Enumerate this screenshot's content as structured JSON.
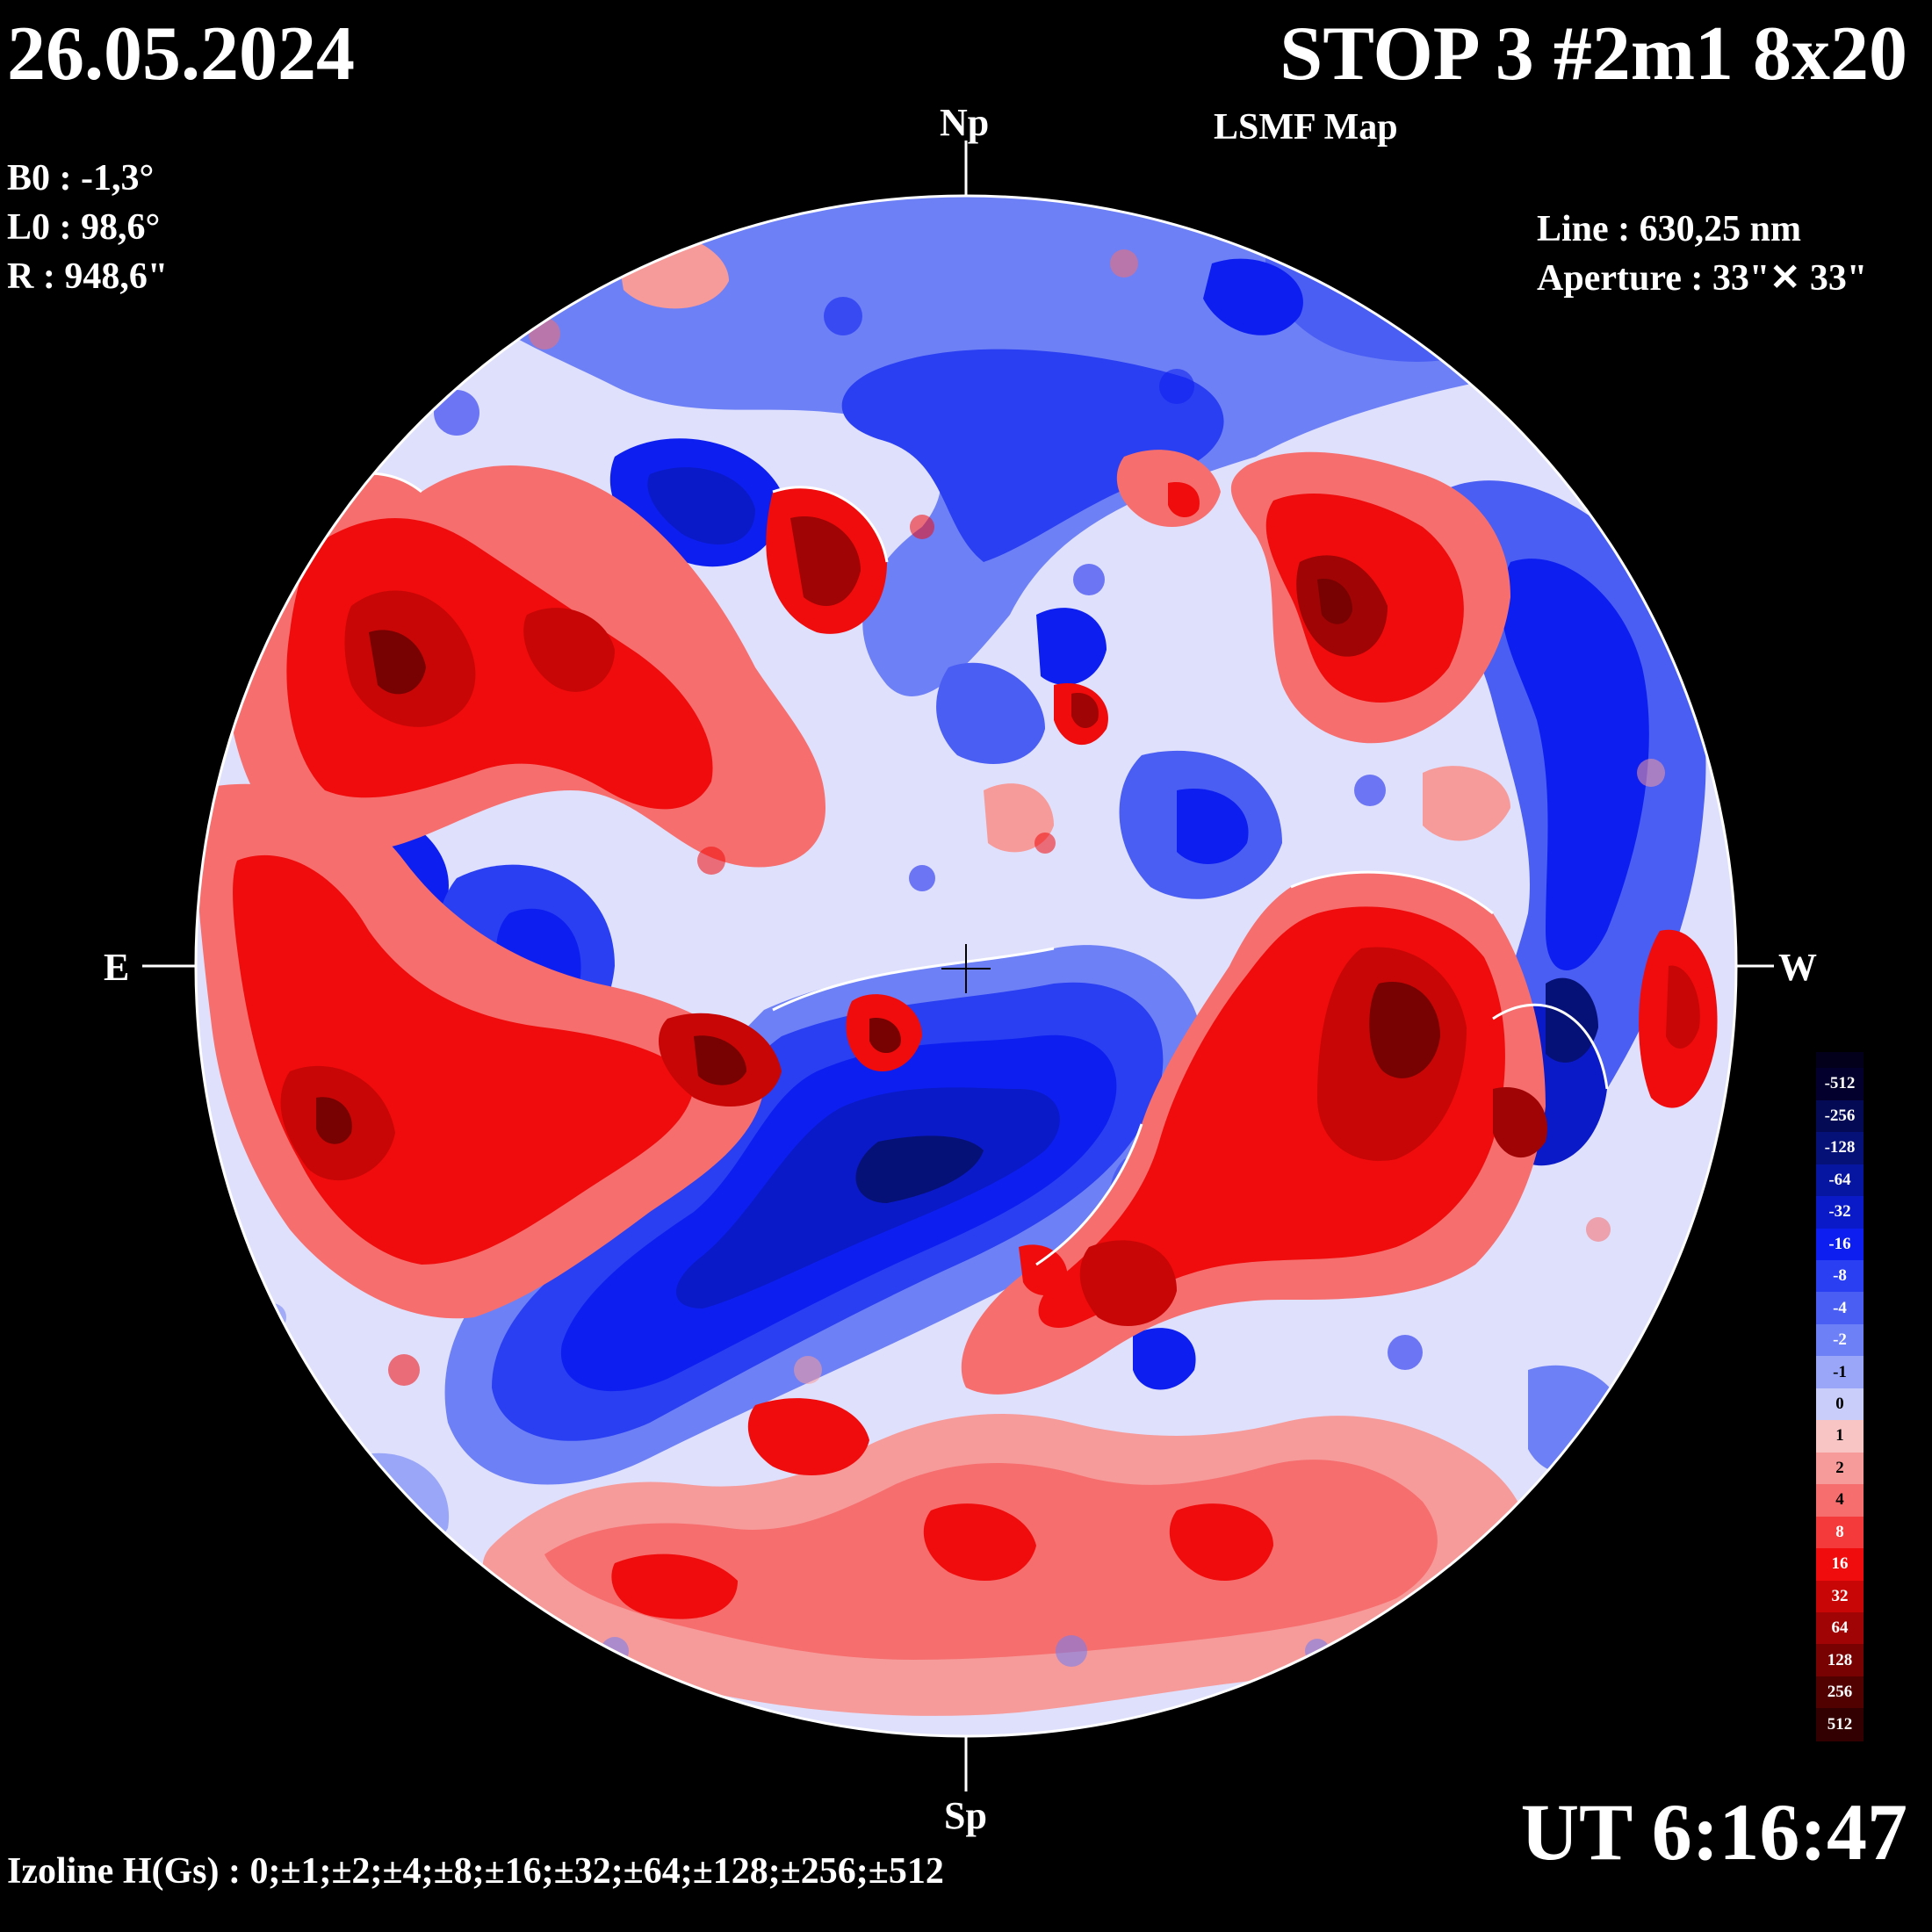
{
  "header": {
    "date": "26.05.2024",
    "title": "STOP 3 #2m1 8x20",
    "subtitle": "LSMF  Map"
  },
  "params": {
    "b0": "B0 : -1,3°",
    "l0": "L0 : 98,6°",
    "r": "R  : 948,6\""
  },
  "instrument": {
    "line": "Line :  630,25 nm",
    "aperture": "Aperture : 33\"✕ 33\""
  },
  "time": "UT 6:16:47",
  "izoline": "Izoline H(Gs) : 0;±1;±2;±4;±8;±16;±32;±64;±128;±256;±512",
  "directions": {
    "north": "Np",
    "south": "Sp",
    "east": "E",
    "west": "W"
  },
  "colorbar": {
    "levels": [
      {
        "label": "-512",
        "color": "#04002e"
      },
      {
        "label": "-256",
        "color": "#050a55"
      },
      {
        "label": "-128",
        "color": "#061177"
      },
      {
        "label": "-64",
        "color": "#0716a0"
      },
      {
        "label": "-32",
        "color": "#0a1ac8"
      },
      {
        "label": "-16",
        "color": "#0d1ff0"
      },
      {
        "label": "-8",
        "color": "#2a3ff2"
      },
      {
        "label": "-4",
        "color": "#4a5ef4"
      },
      {
        "label": "-2",
        "color": "#6e80f6"
      },
      {
        "label": "-1",
        "color": "#9aa6f8"
      },
      {
        "label": "0",
        "color": "#c8cdfa"
      },
      {
        "label": "1",
        "color": "#f8c4c4"
      },
      {
        "label": "2",
        "color": "#f79a9a"
      },
      {
        "label": "4",
        "color": "#f66e6e"
      },
      {
        "label": "8",
        "color": "#f43a3a"
      },
      {
        "label": "16",
        "color": "#f00c0c"
      },
      {
        "label": "32",
        "color": "#c80606"
      },
      {
        "label": "64",
        "color": "#a00404"
      },
      {
        "label": "128",
        "color": "#780202"
      },
      {
        "label": "256",
        "color": "#520101"
      },
      {
        "label": "512",
        "color": "#320000"
      }
    ]
  },
  "colors": {
    "background": "#000000",
    "neutral_negative": "#c8cdfa",
    "neutral_positive": "#f8c4c4",
    "contour": "#ffffff"
  }
}
